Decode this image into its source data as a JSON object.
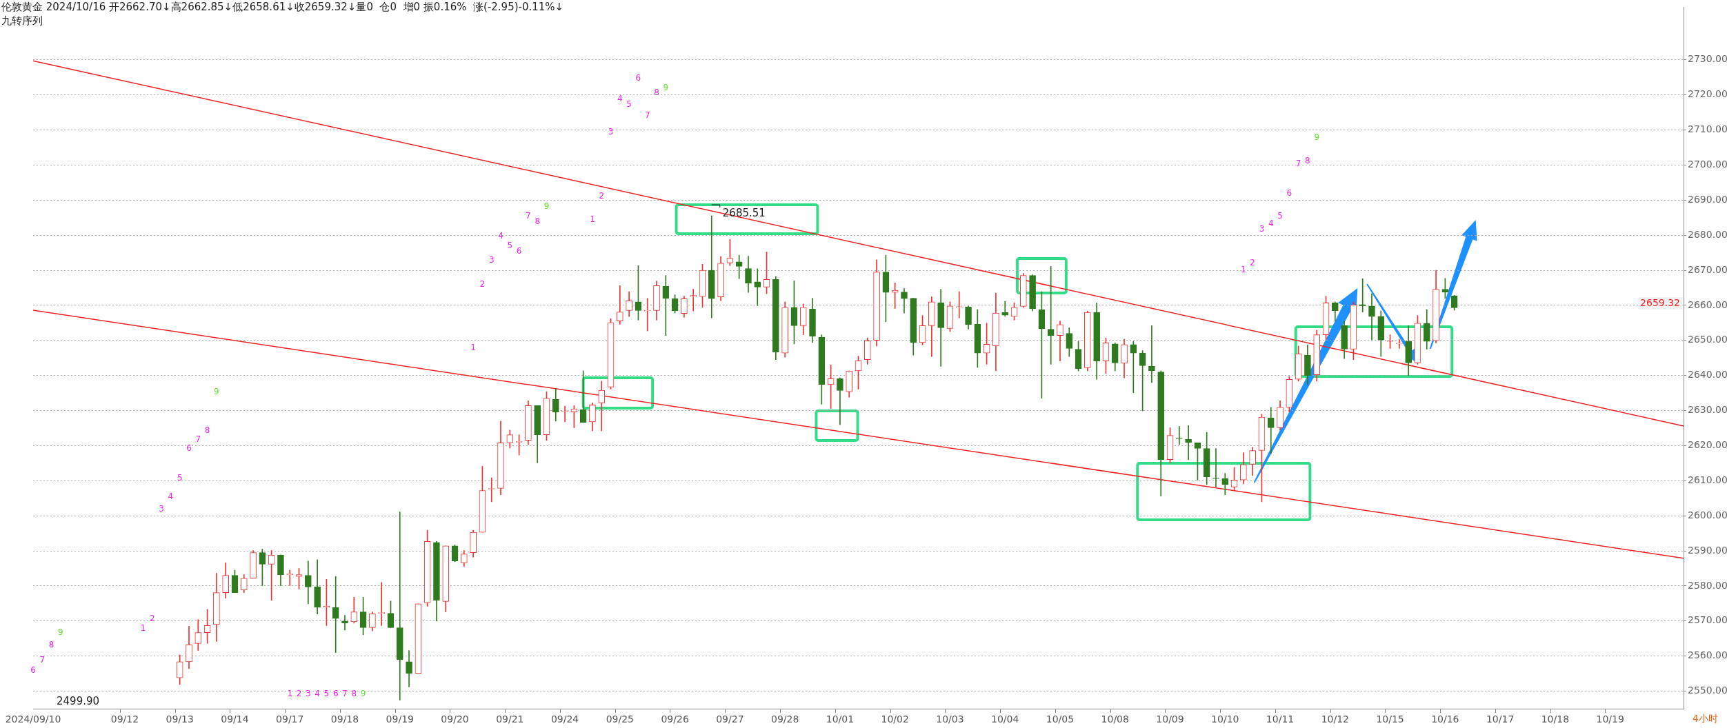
{
  "chart_data": {
    "type": "candlestick",
    "title": "伦敦黄金 2024/10/16 开2662.70↓高2662.85↓低2658.61↓收2659.32↓量0  仓0  增0 振0.16%  涨(-2.95)-0.11%↓",
    "subtitle": "九转序列",
    "categories": [
      "2024/09/10",
      null,
      null,
      null,
      null,
      null,
      null,
      null,
      null,
      null,
      "09/12",
      null,
      null,
      null,
      null,
      null,
      "09/13",
      null,
      null,
      null,
      null,
      null,
      "09/14",
      null,
      null,
      null,
      null,
      null,
      "09/17",
      null,
      null,
      null,
      null,
      null,
      "09/18",
      null,
      null,
      null,
      null,
      null,
      "09/19",
      null,
      null,
      null,
      null,
      null,
      "09/20",
      null,
      null,
      null,
      null,
      null,
      "09/21",
      null,
      null,
      null,
      null,
      null,
      "09/24",
      null,
      null,
      null,
      null,
      null,
      "09/25",
      null,
      null,
      null,
      null,
      null,
      "09/26",
      null,
      null,
      null,
      null,
      null,
      "09/27",
      null,
      null,
      null,
      null,
      null,
      "09/28",
      null,
      null,
      null,
      null,
      null,
      "10/01",
      null,
      null,
      null,
      null,
      null,
      "10/02",
      null,
      null,
      null,
      null,
      null,
      "10/03",
      null,
      null,
      null,
      null,
      null,
      "10/04",
      null,
      null,
      null,
      null,
      null,
      "10/05",
      null,
      null,
      null,
      null,
      null,
      "10/08",
      null,
      null,
      null,
      null,
      null,
      "10/09",
      null,
      null,
      null,
      null,
      null,
      "10/10",
      null,
      null,
      null,
      null,
      null,
      "10/11",
      null,
      null,
      null,
      null,
      null,
      "10/12",
      null,
      null,
      null,
      null,
      null,
      "10/15",
      null,
      null,
      null,
      null,
      null,
      "10/16",
      null,
      null,
      null,
      null,
      null,
      "10/17",
      null,
      null,
      null,
      null,
      null,
      "10/18",
      null,
      null,
      null,
      null,
      null,
      "10/19",
      null,
      null,
      null,
      null,
      null,
      null,
      null,
      null
    ],
    "series": [
      {
        "type": "line",
        "color": "#ee2222",
        "values": [
          2729.7,
          null,
          null,
          null,
          null,
          null,
          null,
          null,
          null,
          null,
          null,
          null,
          null,
          null,
          null,
          null,
          null,
          null,
          null,
          null,
          null,
          null,
          null,
          null,
          null,
          null,
          null,
          null,
          null,
          null,
          null,
          null,
          null,
          null,
          null,
          null,
          null,
          null,
          null,
          null,
          null,
          null,
          null,
          null,
          null,
          null,
          null,
          null,
          null,
          null,
          null,
          null,
          null,
          null,
          null,
          null,
          null,
          null,
          null,
          null,
          null,
          null,
          null,
          null,
          null,
          null,
          null,
          null,
          null,
          null,
          null,
          null,
          null,
          null,
          null,
          null,
          null,
          null,
          null,
          null,
          null,
          null,
          null,
          null,
          null,
          null,
          null,
          null,
          null,
          null,
          null,
          null,
          null,
          null,
          null,
          null,
          null,
          null,
          null,
          null,
          null,
          null,
          null,
          null,
          null,
          null,
          null,
          null,
          null,
          null,
          null,
          null,
          null,
          null,
          null,
          null,
          null,
          null,
          null,
          null,
          null,
          null,
          null,
          null,
          null,
          null,
          null,
          null,
          null,
          null,
          null,
          null,
          null,
          null,
          null,
          null,
          null,
          null,
          null,
          null,
          null,
          null,
          null,
          null,
          null,
          null,
          null,
          null,
          null,
          null,
          null,
          null,
          null,
          null,
          null,
          null,
          null,
          null,
          null,
          null,
          null,
          null,
          null,
          null,
          null,
          null,
          null,
          null,
          null,
          null,
          null,
          null,
          null,
          null,
          null,
          null,
          null,
          null,
          null,
          null,
          2625.6
        ]
      },
      {
        "type": "line",
        "color": "#ee2222",
        "values": [
          2658.6,
          null,
          null,
          null,
          null,
          null,
          null,
          null,
          null,
          null,
          null,
          null,
          null,
          null,
          null,
          null,
          null,
          null,
          null,
          null,
          null,
          null,
          null,
          null,
          null,
          null,
          null,
          null,
          null,
          null,
          null,
          null,
          null,
          null,
          null,
          null,
          null,
          null,
          null,
          null,
          null,
          null,
          null,
          null,
          null,
          null,
          null,
          null,
          null,
          null,
          null,
          null,
          null,
          null,
          null,
          null,
          null,
          null,
          null,
          null,
          null,
          null,
          null,
          null,
          null,
          null,
          null,
          null,
          null,
          null,
          null,
          null,
          null,
          null,
          null,
          null,
          null,
          null,
          null,
          null,
          null,
          null,
          null,
          null,
          null,
          null,
          null,
          null,
          null,
          null,
          null,
          null,
          null,
          null,
          null,
          null,
          null,
          null,
          null,
          null,
          null,
          null,
          null,
          null,
          null,
          null,
          null,
          null,
          null,
          null,
          null,
          null,
          null,
          null,
          null,
          null,
          null,
          null,
          null,
          null,
          null,
          null,
          null,
          null,
          null,
          null,
          null,
          null,
          null,
          null,
          null,
          null,
          null,
          null,
          null,
          null,
          null,
          null,
          null,
          null,
          null,
          null,
          null,
          null,
          null,
          null,
          null,
          null,
          null,
          null,
          null,
          null,
          null,
          null,
          null,
          null,
          null,
          null,
          null,
          null,
          null,
          null,
          null,
          null,
          null,
          null,
          null,
          null,
          null,
          null,
          null,
          null,
          null,
          null,
          null,
          null,
          null,
          null,
          null,
          null,
          2587.9
        ]
      },
      {
        "ohlc": [
          null,
          null,
          null,
          null,
          null,
          null,
          null,
          null,
          null,
          null,
          null,
          null,
          null,
          null,
          null,
          null,
          [
            2553.8,
            2560.3,
            2551.9,
            2558.4
          ],
          [
            2558.4,
            2568.5,
            2556.4,
            2563.2
          ],
          [
            2563.6,
            2570.4,
            2561.6,
            2566.7
          ],
          [
            2566.7,
            2573.3,
            2563.6,
            2568.7
          ],
          [
            2569.0,
            2583.6,
            2564.2,
            2578.1
          ],
          [
            2578.1,
            2586.6,
            2576.5,
            2583.0
          ],
          [
            2583.0,
            2584.5,
            2578.1,
            2578.1
          ],
          [
            2578.8,
            2583.2,
            2578.1,
            2582.2
          ],
          [
            2582.2,
            2590.1,
            2582.2,
            2589.5
          ],
          [
            2589.5,
            2590.5,
            2580.1,
            2586.2
          ],
          [
            2586.2,
            2590.1,
            2575.9,
            2588.8
          ],
          [
            2588.8,
            2588.8,
            2580.1,
            2583.2
          ],
          [
            2583.2,
            2584.5,
            2580.1,
            2583.2
          ],
          [
            2582.7,
            2585.0,
            2579.1,
            2583.2
          ],
          [
            2583.0,
            2587.1,
            2574.9,
            2579.7
          ],
          [
            2579.7,
            2587.5,
            2572.0,
            2573.9
          ],
          [
            2573.9,
            2581.9,
            2568.7,
            2574.2
          ],
          [
            2573.9,
            2582.7,
            2561.0,
            2570.7
          ],
          [
            2570.0,
            2571.6,
            2567.4,
            2569.4
          ],
          [
            2569.8,
            2576.8,
            2569.4,
            2572.6
          ],
          [
            2572.6,
            2576.8,
            2566.1,
            2568.1
          ],
          [
            2568.1,
            2572.6,
            2567.2,
            2572.1
          ],
          [
            2572.2,
            2581.0,
            2568.7,
            2572.4
          ],
          [
            2572.2,
            2575.7,
            2568.1,
            2568.1
          ],
          [
            2568.1,
            2601.1,
            2547.4,
            2559.0
          ],
          [
            2558.4,
            2561.6,
            2551.2,
            2555.1
          ],
          [
            2555.1,
            2574.9,
            2555.1,
            2574.9
          ],
          [
            2575.2,
            2595.9,
            2574.2,
            2592.7
          ],
          [
            2592.4,
            2592.7,
            2570.0,
            2575.9
          ],
          [
            2575.6,
            2591.4,
            2572.6,
            2591.4
          ],
          [
            2591.4,
            2591.7,
            2586.9,
            2587.1
          ],
          [
            2586.6,
            2590.1,
            2585.6,
            2589.1
          ],
          [
            2589.5,
            2595.9,
            2588.2,
            2595.3
          ],
          [
            2595.3,
            2614.1,
            2595.3,
            2607.2
          ],
          [
            2607.6,
            2610.8,
            2604.0,
            2607.8
          ],
          [
            2607.8,
            2627.0,
            2606.0,
            2620.8
          ],
          [
            2620.8,
            2624.4,
            2619.3,
            2623.1
          ],
          [
            2621.0,
            2623.1,
            2617.3,
            2621.2
          ],
          [
            2621.5,
            2632.8,
            2620.3,
            2631.4
          ],
          [
            2631.4,
            2631.4,
            2615.1,
            2623.1
          ],
          [
            2623.1,
            2635.4,
            2621.5,
            2633.5
          ],
          [
            2633.2,
            2636.3,
            2627.0,
            2629.6
          ],
          [
            2629.7,
            2631.2,
            2626.8,
            2629.9
          ],
          [
            2629.6,
            2631.4,
            2625.1,
            2630.5
          ],
          [
            2630.3,
            2641.3,
            2626.6,
            2626.6
          ],
          [
            2626.8,
            2632.2,
            2624.2,
            2631.6
          ],
          [
            2632.2,
            2638.4,
            2624.2,
            2635.8
          ],
          [
            2636.7,
            2656.2,
            2636.1,
            2655.1
          ],
          [
            2655.5,
            2665.6,
            2654.6,
            2658.1
          ],
          [
            2658.5,
            2663.9,
            2656.8,
            2661.3
          ],
          [
            2661.0,
            2671.3,
            2655.8,
            2658.5
          ],
          [
            2658.4,
            2662.0,
            2652.7,
            2658.5
          ],
          [
            2658.5,
            2666.9,
            2655.8,
            2665.6
          ],
          [
            2665.4,
            2668.5,
            2651.4,
            2662.0
          ],
          [
            2661.9,
            2663.0,
            2657.8,
            2658.4
          ],
          [
            2657.7,
            2662.6,
            2656.6,
            2661.9
          ],
          [
            2662.5,
            2664.6,
            2658.4,
            2662.8
          ],
          [
            2662.5,
            2671.7,
            2659.4,
            2670.0
          ],
          [
            2670.0,
            2685.51,
            2656.4,
            2661.9
          ],
          [
            2662.4,
            2673.9,
            2661.3,
            2672.0
          ],
          [
            2672.1,
            2678.8,
            2671.3,
            2673.4
          ],
          [
            2672.4,
            2674.3,
            2667.6,
            2671.1
          ],
          [
            2670.5,
            2674.0,
            2663.7,
            2666.3
          ],
          [
            2666.7,
            2670.4,
            2659.9,
            2665.2
          ],
          [
            2665.2,
            2675.2,
            2663.3,
            2667.4
          ],
          [
            2667.4,
            2668.2,
            2644.5,
            2646.7
          ],
          [
            2646.4,
            2661.0,
            2645.2,
            2659.4
          ],
          [
            2659.4,
            2667.0,
            2649.0,
            2654.2
          ],
          [
            2654.2,
            2660.4,
            2651.6,
            2659.4
          ],
          [
            2659.0,
            2662.0,
            2649.4,
            2651.2
          ],
          [
            2650.9,
            2651.6,
            2631.8,
            2637.4
          ],
          [
            2637.4,
            2643.0,
            2630.6,
            2639.1
          ],
          [
            2639.1,
            2639.3,
            2626.0,
            2635.7
          ],
          [
            2635.4,
            2641.3,
            2633.8,
            2641.3
          ],
          [
            2641.3,
            2645.5,
            2636.1,
            2644.2
          ],
          [
            2644.5,
            2650.7,
            2643.2,
            2649.9
          ],
          [
            2650.0,
            2673.0,
            2648.4,
            2669.5
          ],
          [
            2669.5,
            2674.3,
            2655.3,
            2663.7
          ],
          [
            2663.7,
            2666.4,
            2659.1,
            2664.3
          ],
          [
            2663.8,
            2664.8,
            2657.8,
            2661.9
          ],
          [
            2662.0,
            2662.0,
            2645.8,
            2649.4
          ],
          [
            2649.4,
            2657.1,
            2648.7,
            2654.2
          ],
          [
            2654.2,
            2662.4,
            2645.4,
            2661.0
          ],
          [
            2660.7,
            2664.6,
            2642.6,
            2653.6
          ],
          [
            2653.4,
            2661.0,
            2652.5,
            2659.8
          ],
          [
            2659.4,
            2663.9,
            2656.4,
            2659.5
          ],
          [
            2659.5,
            2659.8,
            2653.2,
            2654.5
          ],
          [
            2654.6,
            2658.8,
            2642.3,
            2646.4
          ],
          [
            2646.4,
            2654.9,
            2643.2,
            2648.9
          ],
          [
            2648.4,
            2663.5,
            2641.3,
            2657.8
          ],
          [
            2658.0,
            2661.1,
            2656.9,
            2657.2
          ],
          [
            2656.8,
            2660.7,
            2655.8,
            2659.4
          ],
          [
            2659.7,
            2669.1,
            2659.4,
            2668.5
          ],
          [
            2668.5,
            2668.7,
            2658.4,
            2659.0
          ],
          [
            2658.8,
            2663.9,
            2633.5,
            2653.3
          ],
          [
            2653.2,
            2671.1,
            2643.2,
            2651.4
          ],
          [
            2651.4,
            2655.5,
            2644.1,
            2654.5
          ],
          [
            2652.0,
            2653.6,
            2645.4,
            2647.7
          ],
          [
            2647.5,
            2649.7,
            2641.3,
            2641.9
          ],
          [
            2642.2,
            2658.4,
            2641.3,
            2658.0
          ],
          [
            2658.0,
            2660.7,
            2638.9,
            2644.1
          ],
          [
            2644.1,
            2650.7,
            2640.6,
            2649.3
          ],
          [
            2649.0,
            2649.3,
            2641.3,
            2643.6
          ],
          [
            2643.5,
            2650.3,
            2639.3,
            2648.8
          ],
          [
            2648.8,
            2649.7,
            2635.1,
            2646.4
          ],
          [
            2646.4,
            2647.1,
            2629.9,
            2642.8
          ],
          [
            2642.6,
            2654.2,
            2638.0,
            2641.3
          ],
          [
            2641.0,
            2641.3,
            2605.6,
            2616.0
          ],
          [
            2616.0,
            2625.1,
            2615.1,
            2622.9
          ],
          [
            2622.2,
            2625.5,
            2620.3,
            2622.0
          ],
          [
            2621.8,
            2625.7,
            2616.0,
            2620.9
          ],
          [
            2620.8,
            2620.8,
            2610.2,
            2619.2
          ],
          [
            2619.2,
            2623.8,
            2608.9,
            2611.1
          ],
          [
            2610.8,
            2619.2,
            2608.2,
            2610.6
          ],
          [
            2610.6,
            2612.1,
            2606.0,
            2608.9
          ],
          [
            2608.2,
            2613.8,
            2607.3,
            2610.2
          ],
          [
            2610.2,
            2618.0,
            2609.1,
            2614.6
          ],
          [
            2614.7,
            2619.5,
            2611.5,
            2618.6
          ],
          [
            2618.6,
            2629.0,
            2604.0,
            2628.1
          ],
          [
            2627.9,
            2630.9,
            2617.7,
            2625.1
          ],
          [
            2625.1,
            2632.8,
            2624.4,
            2630.9
          ],
          [
            2630.9,
            2639.7,
            2629.6,
            2638.9
          ],
          [
            2638.9,
            2648.4,
            2638.4,
            2646.2
          ],
          [
            2645.8,
            2648.7,
            2637.4,
            2640.0
          ],
          [
            2640.2,
            2652.9,
            2638.4,
            2651.6
          ],
          [
            2651.6,
            2662.6,
            2650.3,
            2660.7
          ],
          [
            2660.7,
            2661.0,
            2655.5,
            2658.4
          ],
          [
            2654.2,
            2655.5,
            2644.8,
            2647.5
          ],
          [
            2647.5,
            2661.0,
            2644.5,
            2660.1
          ],
          [
            2660.2,
            2667.6,
            2658.1,
            2659.8
          ],
          [
            2659.8,
            2663.3,
            2650.1,
            2656.8
          ],
          [
            2656.8,
            2658.4,
            2645.4,
            2650.1
          ],
          [
            2649.7,
            2651.6,
            2647.7,
            2649.9
          ],
          [
            2649.0,
            2650.3,
            2647.7,
            2649.2
          ],
          [
            2649.7,
            2654.2,
            2640.0,
            2643.6
          ],
          [
            2643.6,
            2657.1,
            2643.2,
            2654.9
          ],
          [
            2654.9,
            2658.8,
            2647.5,
            2649.7
          ],
          [
            2649.9,
            2670.0,
            2649.3,
            2664.6
          ],
          [
            2664.6,
            2667.7,
            2662.0,
            2663.8
          ],
          [
            2662.7,
            2662.85,
            2658.61,
            2659.32
          ],
          null,
          null,
          null,
          null,
          null,
          null,
          null,
          null,
          null,
          null,
          null,
          null,
          null,
          null,
          null,
          null,
          null,
          null,
          null,
          null,
          null,
          null,
          null,
          null,
          null
        ],
        "colors": [
          null,
          null,
          null,
          null,
          null,
          null,
          null,
          null,
          null,
          null,
          null,
          null,
          null,
          null,
          null,
          null,
          "#ee3333",
          "#ee3333",
          "#ee3333",
          "#ee3333",
          "#ee3333",
          "#ee3333",
          "#2f7a1f",
          "#ee3333",
          "#ee3333",
          "#2f7a1f",
          "#ee3333",
          "#2f7a1f",
          "#ee3333",
          "#ee3333",
          "#2f7a1f",
          "#2f7a1f",
          "#ee3333",
          "#2f7a1f",
          "#2f7a1f",
          "#ee3333",
          "#2f7a1f",
          "#ee3333",
          "#ee3333",
          "#2f7a1f",
          "#2f7a1f",
          "#2f7a1f",
          "#ee3333",
          "#ee3333",
          "#2f7a1f",
          "#ee3333",
          "#2f7a1f",
          "#ee3333",
          "#ee3333",
          "#ee3333",
          "#ee3333",
          "#ee3333",
          "#ee3333",
          "#ee3333",
          "#ee3333",
          "#2f7a1f",
          "#ee3333",
          "#2f7a1f",
          "#ee3333",
          "#ee3333",
          "#2f7a1f",
          "#ee3333",
          "#ee3333",
          "#ee3333",
          "#ee3333",
          "#ee3333",
          "#2f7a1f",
          "#ee3333",
          "#ee3333",
          "#2f7a1f",
          "#2f7a1f",
          "#ee3333",
          "#ee3333",
          "#ee3333",
          "#2f7a1f",
          "#ee3333",
          "#ee3333",
          "#2f7a1f",
          "#2f7a1f",
          "#2f7a1f",
          "#ee3333",
          "#2f7a1f",
          "#ee3333",
          "#2f7a1f",
          "#ee3333",
          "#2f7a1f",
          "#2f7a1f",
          "#ee3333",
          "#2f7a1f",
          "#ee3333",
          "#ee3333",
          "#ee3333",
          "#ee3333",
          "#2f7a1f",
          "#ee3333",
          "#2f7a1f",
          "#2f7a1f",
          "#ee3333",
          "#ee3333",
          "#2f7a1f",
          "#ee3333",
          "#ee3333",
          "#2f7a1f",
          "#2f7a1f",
          "#ee3333",
          "#ee3333",
          "#2f7a1f",
          "#ee3333",
          "#ee3333",
          "#2f7a1f",
          "#2f7a1f",
          "#2f7a1f",
          "#ee3333",
          "#2f7a1f",
          "#2f7a1f",
          "#ee3333",
          "#2f7a1f",
          "#ee3333",
          "#2f7a1f",
          "#ee3333",
          "#2f7a1f",
          "#2f7a1f",
          "#2f7a1f",
          "#2f7a1f",
          "#ee3333",
          "#2f7a1f",
          "#2f7a1f",
          "#2f7a1f",
          "#2f7a1f",
          "#2f7a1f",
          "#2f7a1f",
          "#ee3333",
          "#ee3333",
          "#ee3333",
          "#ee3333",
          "#2f7a1f",
          "#ee3333",
          "#ee3333",
          "#ee3333",
          "#2f7a1f",
          "#ee3333",
          "#ee3333",
          "#2f7a1f",
          "#2f7a1f",
          "#ee3333",
          "#2f7a1f",
          "#2f7a1f",
          "#2f7a1f",
          "#ee3333",
          "#ee3333",
          "#2f7a1f",
          "#ee3333",
          "#2f7a1f",
          "#ee3333",
          "#2f7a1f",
          "#2f7a1f",
          null,
          null,
          null,
          null,
          null,
          null,
          null,
          null,
          null,
          null,
          null,
          null,
          null,
          null,
          null,
          null,
          null,
          null,
          null,
          null,
          null,
          null,
          null,
          null,
          null
        ]
      }
    ],
    "ylim": [
      2545,
      2745
    ],
    "yticks": [
      {
        "value": 2550,
        "label": "2550.00"
      },
      {
        "value": 2560,
        "label": "2560.00"
      },
      {
        "value": 2570,
        "label": "2570.00"
      },
      {
        "value": 2580,
        "label": "2580.00"
      },
      {
        "value": 2590,
        "label": "2590.00"
      },
      {
        "value": 2600,
        "label": "2600.00"
      },
      {
        "value": 2610,
        "label": "2610.00"
      },
      {
        "value": 2620,
        "label": "2620.00"
      },
      {
        "value": 2630,
        "label": "2630.00"
      },
      {
        "value": 2640,
        "label": "2640.00"
      },
      {
        "value": 2650,
        "label": "2650.00"
      },
      {
        "value": 2660,
        "label": "2660.00"
      },
      {
        "value": 2670,
        "label": "2670.00"
      },
      {
        "value": 2680,
        "label": "2680.00"
      },
      {
        "value": 2690,
        "label": "2690.00"
      },
      {
        "value": 2700,
        "label": "2700.00"
      },
      {
        "value": 2710,
        "label": "2710.00"
      },
      {
        "value": 2720,
        "label": "2720.00"
      },
      {
        "value": 2730,
        "label": "2730.00"
      }
    ],
    "grid": "y",
    "annotations": [
      "2685.51",
      "2499.90",
      "2659.32",
      "4小时",
      "6",
      "7",
      "8",
      "9",
      "1",
      "2",
      "3",
      "4",
      "5",
      "6",
      "7",
      "8",
      "9",
      "1",
      "2",
      "3",
      "4",
      "5",
      "6",
      "7",
      "8",
      "9",
      "1",
      "2",
      "3",
      "4",
      "5",
      "6",
      "7",
      "8",
      "9",
      "1",
      "2",
      "3",
      "4",
      "5",
      "6",
      "7",
      "8",
      "9",
      "1",
      "2",
      "3",
      "4",
      "5",
      "6",
      "7",
      "8",
      "9"
    ]
  }
}
